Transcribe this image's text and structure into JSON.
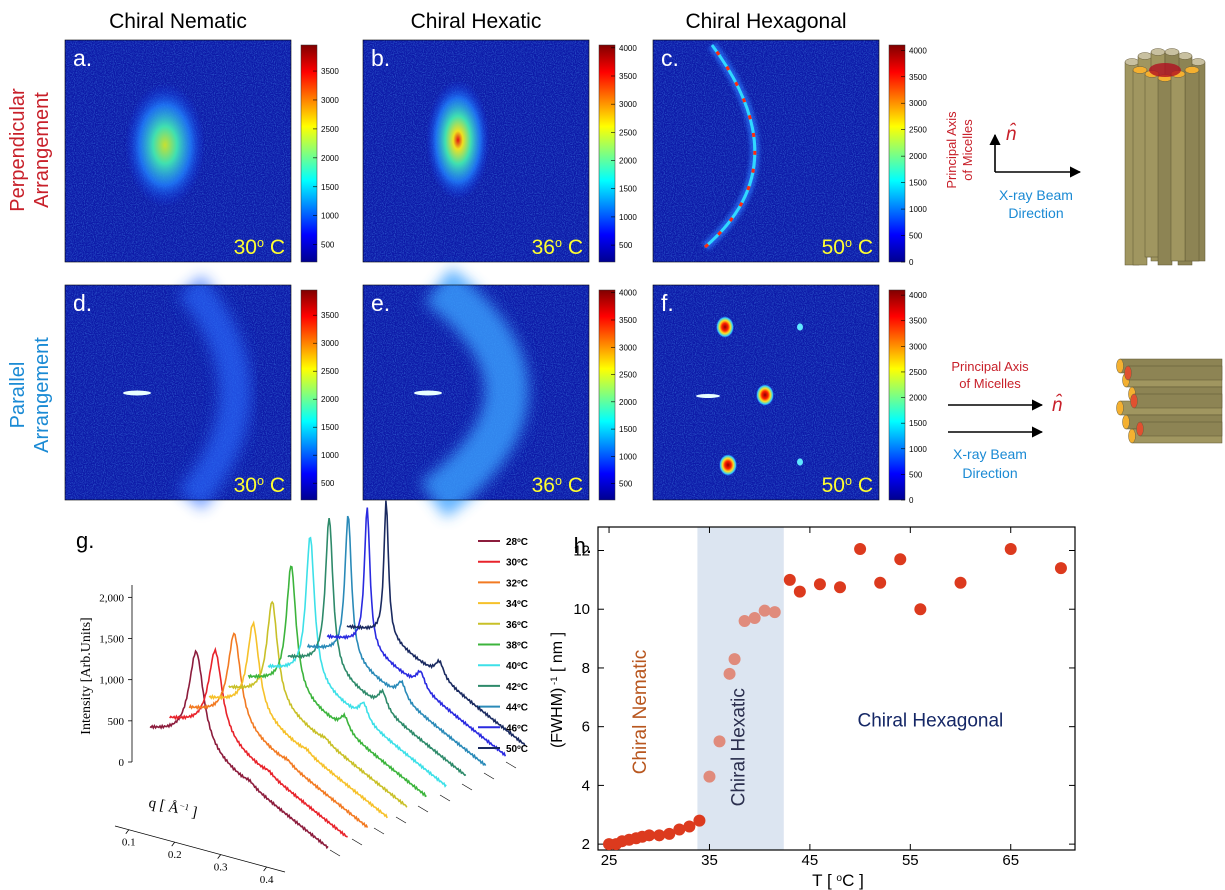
{
  "columns": [
    "Chiral Nematic",
    "Chiral Hexatic",
    "Chiral Hexagonal"
  ],
  "rows": [
    {
      "line1": "Perpendicular",
      "line2": "Arrangement",
      "color": "#c8202a"
    },
    {
      "line1": "Parallel",
      "line2": "Arrangement",
      "color": "#1a8ad4"
    }
  ],
  "panels": [
    {
      "label": "a.",
      "temperature": {
        "value": "30",
        "sup": "o",
        "unit": " C"
      },
      "clim": [
        200,
        3950
      ],
      "colorbar_ticks": [
        500,
        1000,
        1500,
        2000,
        2500,
        3000,
        3500
      ]
    },
    {
      "label": "b.",
      "temperature": {
        "value": "36",
        "sup": "o",
        "unit": " C"
      },
      "clim": [
        200,
        4050
      ],
      "colorbar_ticks": [
        500,
        1000,
        1500,
        2000,
        2500,
        3000,
        3500,
        4000
      ]
    },
    {
      "label": "c.",
      "temperature": {
        "value": "50",
        "sup": "o",
        "unit": " C"
      },
      "clim": [
        0,
        4100
      ],
      "colorbar_ticks": [
        0,
        500,
        1000,
        1500,
        2000,
        2500,
        3000,
        3500,
        4000
      ]
    },
    {
      "label": "d.",
      "temperature": {
        "value": "30",
        "sup": "o",
        "unit": " C"
      },
      "clim": [
        200,
        3950
      ],
      "colorbar_ticks": [
        500,
        1000,
        1500,
        2000,
        2500,
        3000,
        3500
      ]
    },
    {
      "label": "e.",
      "temperature": {
        "value": "36",
        "sup": "o",
        "unit": " C"
      },
      "clim": [
        200,
        4050
      ],
      "colorbar_ticks": [
        500,
        1000,
        1500,
        2000,
        2500,
        3000,
        3500,
        4000
      ]
    },
    {
      "label": "f.",
      "temperature": {
        "value": "50",
        "sup": "o",
        "unit": " C"
      },
      "clim": [
        0,
        4100
      ],
      "colorbar_ticks": [
        0,
        500,
        1000,
        1500,
        2000,
        2500,
        3000,
        3500,
        4000
      ]
    }
  ],
  "schematics": [
    {
      "axis_label": [
        "Principal Axis",
        "of Micelles"
      ],
      "n_hat": "n̂",
      "beam_label": [
        "X-ray Beam",
        "Direction"
      ]
    },
    {
      "axis_label": [
        "Principal Axis",
        "of  Micelles"
      ],
      "n_hat": "n̂",
      "beam_label": [
        "X-ray Beam",
        "Direction"
      ]
    }
  ],
  "waterfall": {
    "label": "g.",
    "ylabel": "Intensity [Arb.Units]",
    "ylim": [
      0,
      2150
    ],
    "yticks": [
      0,
      500,
      {
        "value": 1000,
        "label": "1,000"
      },
      {
        "value": 1500,
        "label": "1,500"
      },
      {
        "value": 2000,
        "label": "2,000"
      }
    ],
    "xlabel": {
      "text": "q [ Å",
      "sup": "−1",
      "after": " ]"
    },
    "xlim": [
      0.07,
      0.44
    ],
    "xticks": [
      0.1,
      0.2,
      0.3,
      0.4
    ],
    "legend": [
      {
        "name": "28",
        "sup": "o",
        "unit": "C",
        "color": "#8c1c3c"
      },
      {
        "name": "30",
        "sup": "o",
        "unit": "C",
        "color": "#e8232b"
      },
      {
        "name": "32",
        "sup": "o",
        "unit": "C",
        "color": "#f27a22"
      },
      {
        "name": "34",
        "sup": "o",
        "unit": "C",
        "color": "#f6c12a"
      },
      {
        "name": "36",
        "sup": "o",
        "unit": "C",
        "color": "#c8c028"
      },
      {
        "name": "38",
        "sup": "o",
        "unit": "C",
        "color": "#3cb43c"
      },
      {
        "name": "40",
        "sup": "o",
        "unit": "C",
        "color": "#3de0e8"
      },
      {
        "name": "42",
        "sup": "o",
        "unit": "C",
        "color": "#2e8a6a"
      },
      {
        "name": "44",
        "sup": "o",
        "unit": "C",
        "color": "#2a8ab8"
      },
      {
        "name": "46",
        "sup": "o",
        "unit": "C",
        "color": "#2a2ae0"
      },
      {
        "name": "50",
        "sup": "o",
        "unit": "C",
        "color": "#1a2a60"
      }
    ]
  },
  "chart_data": {
    "type": "scatter",
    "label": "h.",
    "xlabel": {
      "text": "T [ ",
      "sup": "o",
      "after": "C ]"
    },
    "ylabel": {
      "text": "(FWHM)",
      "sup": " -1",
      "after": " [ nm ]"
    },
    "xlim": [
      23.9,
      71.4
    ],
    "ylim": [
      1.8,
      12.8
    ],
    "xticks": [
      25,
      35,
      45,
      55,
      65
    ],
    "yticks": [
      2,
      4,
      6,
      8,
      10,
      12
    ],
    "shaded_x": [
      33.8,
      42.4
    ],
    "shade_color": "#dce5f1",
    "annotations": [
      {
        "text": "Chiral Nematic",
        "color": "#b8561e"
      },
      {
        "text": "Chiral Hexatic",
        "color": "#2b2f4e"
      },
      {
        "text": "Chiral Hexagonal",
        "color": "#152766"
      }
    ],
    "series": [
      {
        "color": "#dc3a1e",
        "x": [
          25,
          25.7,
          26.3,
          27,
          27.7,
          28.3,
          29,
          30,
          31,
          32,
          33,
          34,
          43,
          44,
          46,
          48,
          50,
          52,
          54,
          56,
          60,
          65,
          70
        ],
        "values": [
          2.0,
          2.0,
          2.1,
          2.15,
          2.2,
          2.25,
          2.3,
          2.3,
          2.35,
          2.5,
          2.6,
          2.8,
          11.0,
          10.6,
          10.85,
          10.75,
          12.05,
          10.9,
          11.7,
          10.0,
          10.9,
          12.05,
          11.4
        ]
      },
      {
        "color": "#e08b7c",
        "x": [
          35,
          36,
          37,
          37.5,
          38.5,
          39.5,
          40.5,
          41.5
        ],
        "values": [
          4.3,
          5.5,
          7.8,
          8.3,
          9.6,
          9.7,
          9.95,
          9.9
        ]
      }
    ]
  }
}
